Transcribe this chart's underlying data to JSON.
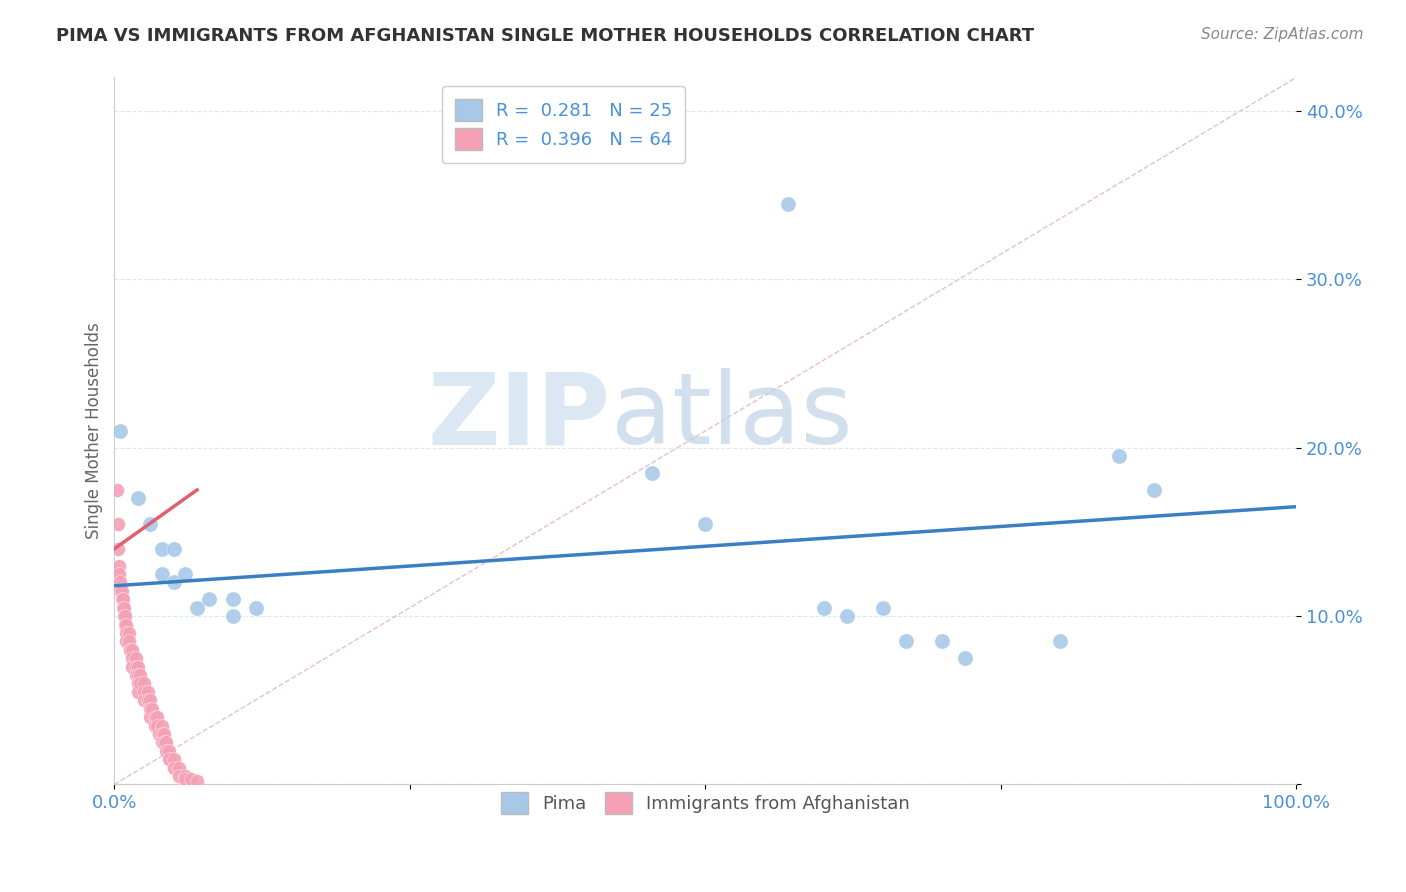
{
  "title": "PIMA VS IMMIGRANTS FROM AFGHANISTAN SINGLE MOTHER HOUSEHOLDS CORRELATION CHART",
  "source": "Source: ZipAtlas.com",
  "ylabel": "Single Mother Households",
  "R_pima": 0.281,
  "N_pima": 25,
  "R_afg": 0.396,
  "N_afg": 64,
  "pima_color": "#a8c8e8",
  "afg_color": "#f4a0b5",
  "pima_line_color": "#3a7fc1",
  "afg_line_color": "#e06070",
  "diagonal_color": "#cccccc",
  "background_color": "#ffffff",
  "grid_color": "#ddeaf5",
  "legend_pima": "Pima",
  "legend_afg": "Immigrants from Afghanistan",
  "xlim": [
    0.0,
    1.0
  ],
  "ylim": [
    0.0,
    0.42
  ],
  "pima_scatter": [
    [
      0.005,
      0.21
    ],
    [
      0.02,
      0.17
    ],
    [
      0.03,
      0.155
    ],
    [
      0.04,
      0.14
    ],
    [
      0.04,
      0.125
    ],
    [
      0.05,
      0.14
    ],
    [
      0.05,
      0.12
    ],
    [
      0.06,
      0.125
    ],
    [
      0.07,
      0.105
    ],
    [
      0.08,
      0.11
    ],
    [
      0.1,
      0.1
    ],
    [
      0.1,
      0.11
    ],
    [
      0.12,
      0.105
    ],
    [
      0.455,
      0.185
    ],
    [
      0.5,
      0.155
    ],
    [
      0.57,
      0.345
    ],
    [
      0.6,
      0.105
    ],
    [
      0.62,
      0.1
    ],
    [
      0.65,
      0.105
    ],
    [
      0.67,
      0.085
    ],
    [
      0.7,
      0.085
    ],
    [
      0.72,
      0.075
    ],
    [
      0.8,
      0.085
    ],
    [
      0.85,
      0.195
    ],
    [
      0.88,
      0.175
    ]
  ],
  "afg_scatter": [
    [
      0.002,
      0.175
    ],
    [
      0.003,
      0.155
    ],
    [
      0.003,
      0.14
    ],
    [
      0.004,
      0.13
    ],
    [
      0.004,
      0.125
    ],
    [
      0.005,
      0.12
    ],
    [
      0.005,
      0.115
    ],
    [
      0.006,
      0.115
    ],
    [
      0.006,
      0.11
    ],
    [
      0.007,
      0.11
    ],
    [
      0.007,
      0.105
    ],
    [
      0.008,
      0.105
    ],
    [
      0.008,
      0.1
    ],
    [
      0.009,
      0.1
    ],
    [
      0.009,
      0.095
    ],
    [
      0.01,
      0.095
    ],
    [
      0.01,
      0.09
    ],
    [
      0.01,
      0.085
    ],
    [
      0.012,
      0.09
    ],
    [
      0.012,
      0.085
    ],
    [
      0.013,
      0.08
    ],
    [
      0.015,
      0.08
    ],
    [
      0.015,
      0.075
    ],
    [
      0.015,
      0.07
    ],
    [
      0.018,
      0.075
    ],
    [
      0.018,
      0.07
    ],
    [
      0.018,
      0.065
    ],
    [
      0.02,
      0.07
    ],
    [
      0.02,
      0.065
    ],
    [
      0.02,
      0.06
    ],
    [
      0.02,
      0.055
    ],
    [
      0.022,
      0.065
    ],
    [
      0.022,
      0.06
    ],
    [
      0.025,
      0.06
    ],
    [
      0.025,
      0.055
    ],
    [
      0.025,
      0.05
    ],
    [
      0.028,
      0.055
    ],
    [
      0.028,
      0.05
    ],
    [
      0.03,
      0.05
    ],
    [
      0.03,
      0.045
    ],
    [
      0.03,
      0.04
    ],
    [
      0.032,
      0.045
    ],
    [
      0.034,
      0.04
    ],
    [
      0.034,
      0.035
    ],
    [
      0.036,
      0.04
    ],
    [
      0.036,
      0.035
    ],
    [
      0.038,
      0.03
    ],
    [
      0.04,
      0.035
    ],
    [
      0.04,
      0.03
    ],
    [
      0.04,
      0.025
    ],
    [
      0.042,
      0.03
    ],
    [
      0.042,
      0.025
    ],
    [
      0.044,
      0.025
    ],
    [
      0.044,
      0.02
    ],
    [
      0.046,
      0.02
    ],
    [
      0.046,
      0.015
    ],
    [
      0.05,
      0.015
    ],
    [
      0.05,
      0.01
    ],
    [
      0.055,
      0.01
    ],
    [
      0.055,
      0.005
    ],
    [
      0.06,
      0.005
    ],
    [
      0.06,
      0.003
    ],
    [
      0.065,
      0.003
    ],
    [
      0.07,
      0.002
    ]
  ],
  "pima_line_x": [
    0.0,
    1.0
  ],
  "pima_line_y": [
    0.118,
    0.165
  ],
  "afg_line_x": [
    0.0,
    0.07
  ],
  "afg_line_y": [
    0.14,
    0.175
  ]
}
